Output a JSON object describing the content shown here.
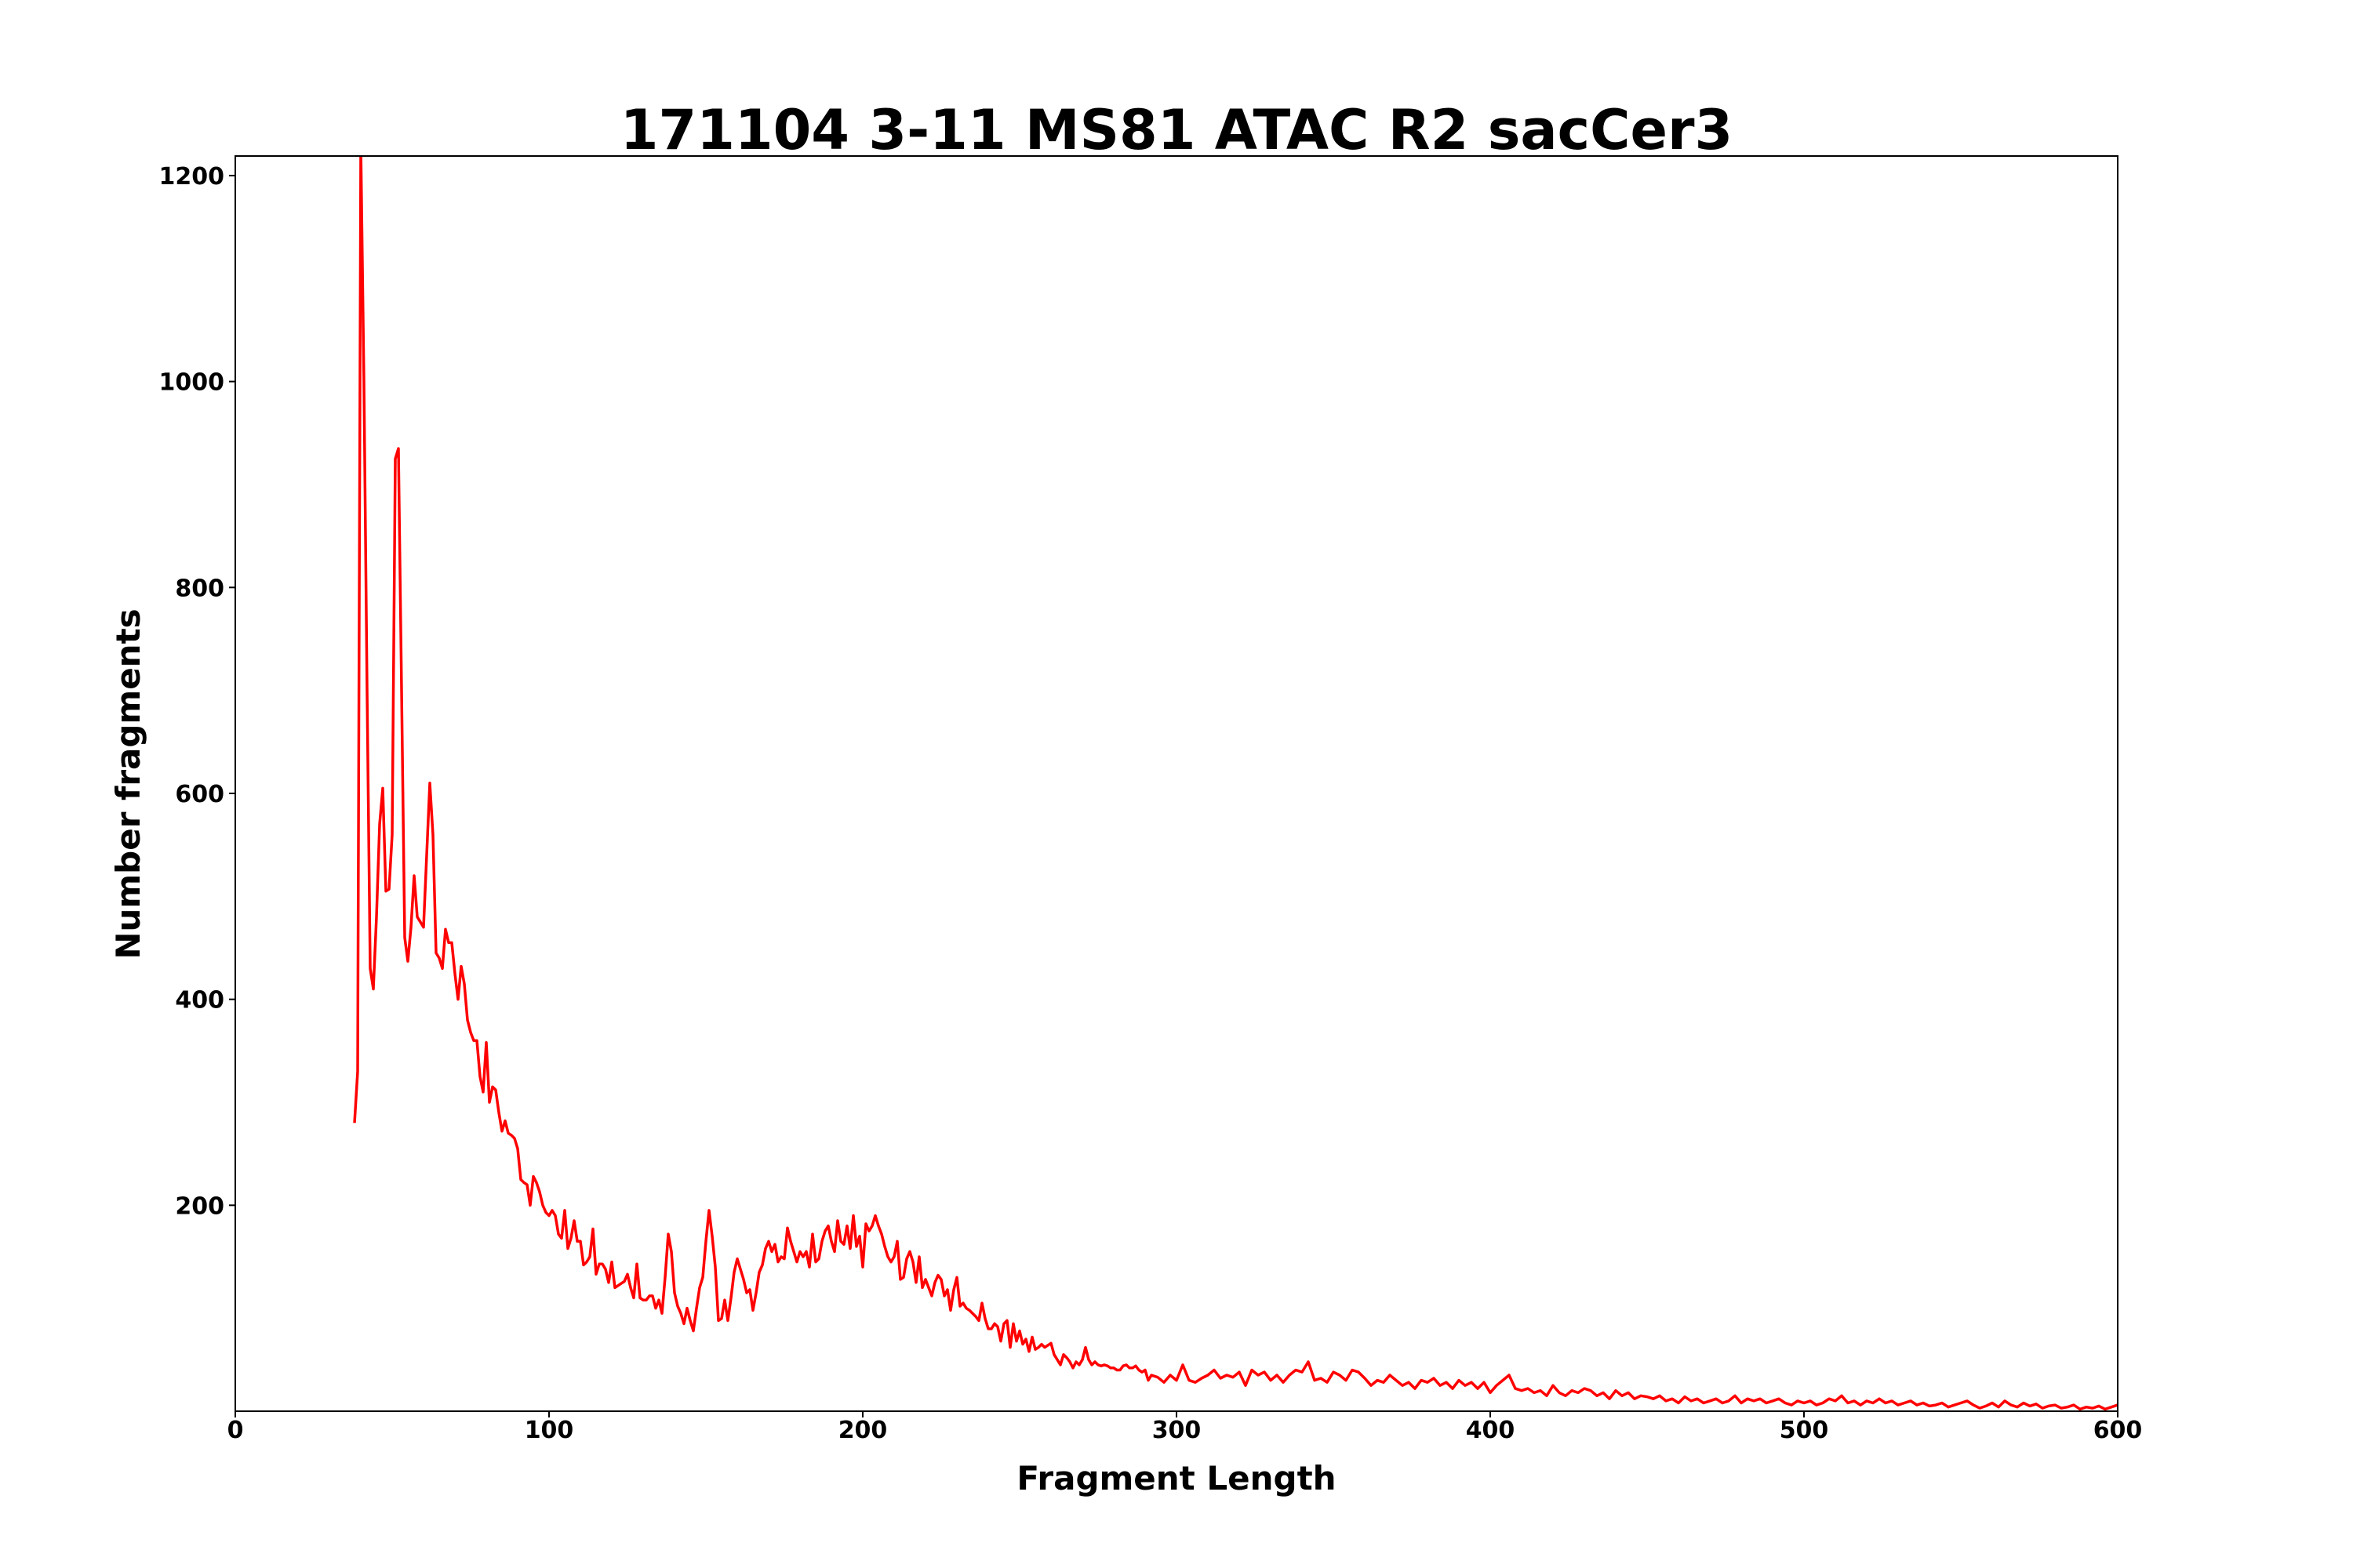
{
  "chart_data": {
    "type": "line",
    "title": "171104 3-11 MS81 ATAC R2 sacCer3",
    "xlabel": "Fragment Length",
    "ylabel": "Number fragments",
    "xlim": [
      0,
      600
    ],
    "ylim": [
      0,
      1219
    ],
    "xticks": [
      0,
      100,
      200,
      300,
      400,
      500,
      600
    ],
    "yticks": [
      200,
      400,
      600,
      800,
      1000,
      1200
    ],
    "grid": false,
    "line_color": "#ff0000",
    "series": [
      {
        "name": "fragments",
        "segments": [
          {
            "x_start": 38,
            "x_step": 1,
            "values": [
              280,
              330,
              1230,
              1000,
              700,
              430,
              410,
              480,
              570,
              605,
              505,
              507,
              560,
              925,
              935,
              700,
              460,
              437,
              470,
              520,
              480,
              475,
              470,
              540,
              610,
              560,
              445,
              440,
              430,
              468,
              455,
              455,
              425,
              400,
              432,
              415,
              380,
              368,
              360,
              360,
              325,
              310,
              358,
              300,
              315,
              312,
              290,
              272,
              282,
              270,
              268,
              265,
              255,
              225,
              222,
              220,
              200,
              228,
              222,
              213,
              200,
              193,
              190,
              195,
              190,
              172,
              168,
              195,
              158,
              168,
              185,
              165,
              165,
              142,
              145,
              150,
              177,
              133,
              143,
              143,
              138,
              125,
              145,
              120,
              122,
              124,
              126,
              133,
              120,
              110,
              143,
              110,
              108,
              108,
              112,
              112,
              100,
              108,
              95,
              130,
              172,
              155,
              115,
              102,
              95,
              85,
              100,
              88,
              78,
              100,
              120,
              130,
              165,
              195,
              170,
              140,
              88,
              90,
              108,
              88,
              110,
              135,
              148,
              138,
              128,
              115,
              118,
              98,
              115,
              135,
              142,
              158,
              165,
              155,
              162,
              145,
              150,
              148,
              178,
              165,
              155,
              145,
              155,
              150,
              155,
              140,
              172,
              145,
              148,
              165,
              175,
              180,
              165,
              155,
              185,
              165,
              162,
              180,
              158,
              190,
              160,
              170,
              140,
              182,
              175,
              180,
              190,
              180,
              172,
              160,
              150,
              145,
              150,
              165,
              128,
              130,
              148,
              155,
              145,
              125,
              150,
              120,
              128,
              120,
              112,
              125,
              132,
              128,
              112,
              118,
              98,
              118,
              130,
              102,
              105,
              100,
              98,
              95,
              92,
              88,
              105,
              90,
              80,
              80,
              85,
              82,
              68,
              85,
              88,
              62,
              85,
              68,
              78,
              65,
              70,
              58,
              72,
              60,
              62,
              65,
              62,
              64,
              66,
              55,
              50,
              45,
              55,
              52,
              48,
              42,
              48,
              45,
              50,
              62,
              50,
              45,
              48,
              45,
              44,
              45,
              44,
              42,
              42,
              40,
              40,
              44,
              45,
              42,
              42,
              44,
              40,
              38,
              40,
              30,
              35
            ]
          },
          {
            "x_start": 294,
            "x_step": 2,
            "values": [
              33,
              28,
              35,
              30,
              45,
              30,
              28,
              32,
              35,
              40,
              32,
              35,
              33,
              38,
              25,
              40,
              35,
              38,
              30,
              35,
              28,
              35,
              40,
              38,
              48,
              30,
              32,
              28,
              38,
              35,
              30,
              40,
              38,
              32,
              25,
              30,
              28,
              35,
              30,
              25,
              28,
              22,
              30,
              28,
              32,
              25,
              28,
              22,
              30,
              25,
              28,
              22,
              28,
              18,
              25,
              30,
              35,
              22,
              20,
              22,
              18,
              20,
              15,
              25,
              18,
              15,
              20,
              18,
              22,
              20,
              15,
              18,
              12,
              20,
              15,
              18,
              12,
              15,
              14,
              12,
              15,
              10,
              12,
              8,
              14,
              10,
              12,
              8,
              10,
              12,
              8,
              10,
              15,
              8,
              12,
              10,
              12,
              8,
              10,
              12,
              8,
              6,
              10,
              8,
              10,
              6,
              8,
              12,
              10,
              15,
              8,
              10,
              6,
              10,
              8,
              12,
              8,
              10,
              6,
              8,
              10,
              6,
              8,
              5,
              6,
              8,
              4,
              6,
              8,
              10,
              6,
              3,
              5,
              8,
              4,
              10,
              6,
              4,
              8,
              5,
              7,
              3,
              5,
              6,
              3,
              4,
              6,
              2,
              4,
              3,
              5,
              2,
              4,
              6
            ]
          }
        ]
      }
    ]
  }
}
